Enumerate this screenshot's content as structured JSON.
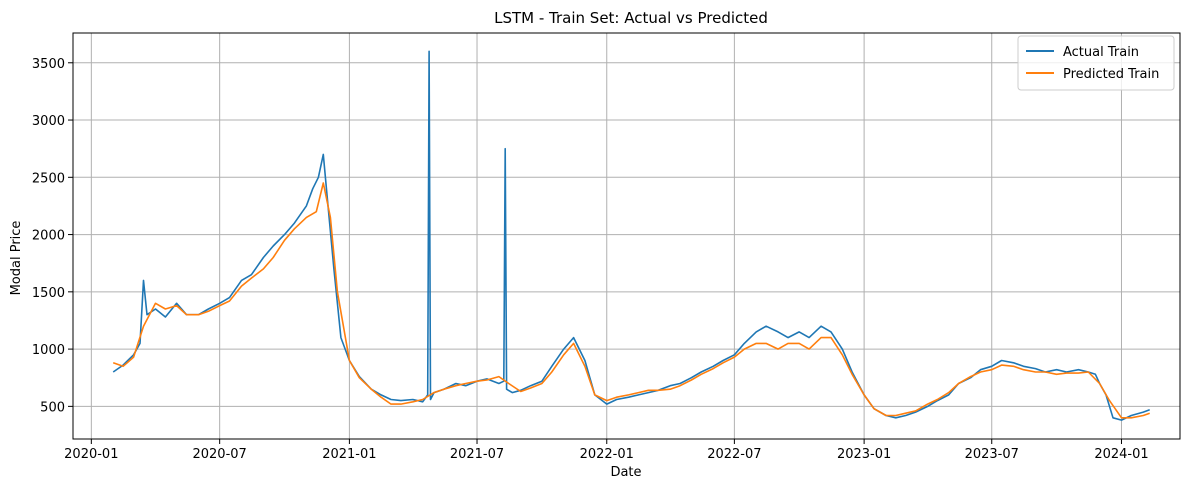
{
  "chart_data": {
    "type": "line",
    "title": "LSTM - Train Set: Actual vs Predicted",
    "xlabel": "Date",
    "ylabel": "Modal Price",
    "x_range": [
      "2019-12-06",
      "2024-03-24"
    ],
    "ylim": [
      215,
      3760
    ],
    "x_ticks": [
      "2020-01",
      "2020-07",
      "2021-01",
      "2021-07",
      "2022-01",
      "2022-07",
      "2023-01",
      "2023-07",
      "2024-01"
    ],
    "y_ticks": [
      500,
      1000,
      1500,
      2000,
      2500,
      3000,
      3500
    ],
    "grid": true,
    "legend_position": "top-right",
    "colors": {
      "actual": "#1f77b4",
      "predicted": "#ff7f0e"
    },
    "series": [
      {
        "name": "Actual Train",
        "color": "#1f77b4",
        "x": [
          "2020-02-01",
          "2020-02-15",
          "2020-03-01",
          "2020-03-10",
          "2020-03-15",
          "2020-03-20",
          "2020-04-01",
          "2020-04-15",
          "2020-05-01",
          "2020-05-15",
          "2020-06-01",
          "2020-06-15",
          "2020-07-01",
          "2020-07-15",
          "2020-08-01",
          "2020-08-15",
          "2020-09-01",
          "2020-09-15",
          "2020-10-01",
          "2020-10-15",
          "2020-11-01",
          "2020-11-10",
          "2020-11-18",
          "2020-11-25",
          "2020-12-01",
          "2020-12-10",
          "2020-12-20",
          "2021-01-01",
          "2021-01-15",
          "2021-02-01",
          "2021-02-15",
          "2021-03-01",
          "2021-03-15",
          "2021-04-01",
          "2021-04-15",
          "2021-04-22",
          "2021-04-24",
          "2021-04-26",
          "2021-05-01",
          "2021-05-15",
          "2021-06-01",
          "2021-06-15",
          "2021-07-01",
          "2021-07-15",
          "2021-08-01",
          "2021-08-08",
          "2021-08-10",
          "2021-08-12",
          "2021-08-20",
          "2021-09-01",
          "2021-09-15",
          "2021-10-01",
          "2021-10-15",
          "2021-11-01",
          "2021-11-15",
          "2021-12-01",
          "2021-12-15",
          "2022-01-01",
          "2022-01-15",
          "2022-02-01",
          "2022-02-15",
          "2022-03-01",
          "2022-03-15",
          "2022-04-01",
          "2022-04-15",
          "2022-05-01",
          "2022-05-15",
          "2022-06-01",
          "2022-06-15",
          "2022-07-01",
          "2022-07-15",
          "2022-08-01",
          "2022-08-15",
          "2022-09-01",
          "2022-09-15",
          "2022-10-01",
          "2022-10-15",
          "2022-11-01",
          "2022-11-15",
          "2022-12-01",
          "2022-12-15",
          "2023-01-01",
          "2023-01-15",
          "2023-02-01",
          "2023-02-15",
          "2023-03-01",
          "2023-03-15",
          "2023-04-01",
          "2023-04-15",
          "2023-05-01",
          "2023-05-15",
          "2023-06-01",
          "2023-06-15",
          "2023-07-01",
          "2023-07-15",
          "2023-08-01",
          "2023-08-15",
          "2023-09-01",
          "2023-09-15",
          "2023-10-01",
          "2023-10-15",
          "2023-11-01",
          "2023-11-15",
          "2023-11-25",
          "2023-12-01",
          "2023-12-10",
          "2023-12-20",
          "2024-01-01",
          "2024-01-15",
          "2024-02-01",
          "2024-02-10"
        ],
        "y": [
          800,
          860,
          950,
          1050,
          1600,
          1300,
          1350,
          1280,
          1400,
          1300,
          1300,
          1350,
          1400,
          1450,
          1600,
          1650,
          1800,
          1900,
          2000,
          2100,
          2250,
          2400,
          2500,
          2700,
          2300,
          1700,
          1100,
          900,
          760,
          650,
          600,
          560,
          550,
          560,
          540,
          600,
          3600,
          560,
          620,
          650,
          700,
          680,
          720,
          740,
          700,
          720,
          2750,
          650,
          620,
          640,
          680,
          720,
          850,
          1000,
          1100,
          900,
          600,
          520,
          560,
          580,
          600,
          620,
          640,
          680,
          700,
          750,
          800,
          850,
          900,
          950,
          1050,
          1150,
          1200,
          1150,
          1100,
          1150,
          1100,
          1200,
          1150,
          1000,
          800,
          600,
          480,
          420,
          400,
          420,
          450,
          500,
          550,
          600,
          700,
          750,
          820,
          850,
          900,
          880,
          850,
          830,
          800,
          820,
          800,
          820,
          800,
          780,
          700,
          600,
          400,
          380,
          420,
          450,
          470
        ]
      },
      {
        "name": "Predicted Train",
        "color": "#ff7f0e",
        "x": [
          "2020-02-01",
          "2020-02-15",
          "2020-03-01",
          "2020-03-15",
          "2020-04-01",
          "2020-04-15",
          "2020-05-01",
          "2020-05-15",
          "2020-06-01",
          "2020-06-15",
          "2020-07-01",
          "2020-07-15",
          "2020-08-01",
          "2020-08-15",
          "2020-09-01",
          "2020-09-15",
          "2020-10-01",
          "2020-10-15",
          "2020-11-01",
          "2020-11-15",
          "2020-11-25",
          "2020-12-05",
          "2020-12-15",
          "2021-01-01",
          "2021-01-15",
          "2021-02-01",
          "2021-02-15",
          "2021-03-01",
          "2021-03-15",
          "2021-04-01",
          "2021-04-15",
          "2021-05-01",
          "2021-05-15",
          "2021-06-01",
          "2021-06-15",
          "2021-07-01",
          "2021-07-15",
          "2021-08-01",
          "2021-08-15",
          "2021-09-01",
          "2021-09-15",
          "2021-10-01",
          "2021-10-15",
          "2021-11-01",
          "2021-11-15",
          "2021-12-01",
          "2021-12-15",
          "2022-01-01",
          "2022-01-15",
          "2022-02-01",
          "2022-02-15",
          "2022-03-01",
          "2022-03-15",
          "2022-04-01",
          "2022-04-15",
          "2022-05-01",
          "2022-05-15",
          "2022-06-01",
          "2022-06-15",
          "2022-07-01",
          "2022-07-15",
          "2022-08-01",
          "2022-08-15",
          "2022-09-01",
          "2022-09-15",
          "2022-10-01",
          "2022-10-15",
          "2022-11-01",
          "2022-11-15",
          "2022-12-01",
          "2022-12-15",
          "2023-01-01",
          "2023-01-15",
          "2023-02-01",
          "2023-02-15",
          "2023-03-01",
          "2023-03-15",
          "2023-04-01",
          "2023-04-15",
          "2023-05-01",
          "2023-05-15",
          "2023-06-01",
          "2023-06-15",
          "2023-07-01",
          "2023-07-15",
          "2023-08-01",
          "2023-08-15",
          "2023-09-01",
          "2023-09-15",
          "2023-10-01",
          "2023-10-15",
          "2023-11-01",
          "2023-11-15",
          "2023-12-01",
          "2023-12-15",
          "2024-01-01",
          "2024-01-15",
          "2024-02-01",
          "2024-02-10"
        ],
        "y": [
          880,
          850,
          930,
          1200,
          1400,
          1350,
          1380,
          1300,
          1300,
          1330,
          1380,
          1420,
          1550,
          1620,
          1700,
          1800,
          1950,
          2050,
          2150,
          2200,
          2450,
          2150,
          1500,
          900,
          750,
          650,
          580,
          520,
          520,
          540,
          560,
          620,
          650,
          680,
          700,
          720,
          730,
          760,
          700,
          630,
          660,
          700,
          800,
          950,
          1050,
          850,
          600,
          550,
          580,
          600,
          620,
          640,
          640,
          650,
          680,
          730,
          780,
          830,
          880,
          930,
          1000,
          1050,
          1050,
          1000,
          1050,
          1050,
          1000,
          1100,
          1100,
          950,
          780,
          600,
          480,
          420,
          420,
          440,
          460,
          520,
          560,
          620,
          700,
          760,
          800,
          820,
          860,
          850,
          820,
          800,
          800,
          780,
          790,
          790,
          800,
          700,
          550,
          400,
          400,
          420,
          440
        ]
      }
    ],
    "legend": [
      "Actual Train",
      "Predicted Train"
    ]
  }
}
